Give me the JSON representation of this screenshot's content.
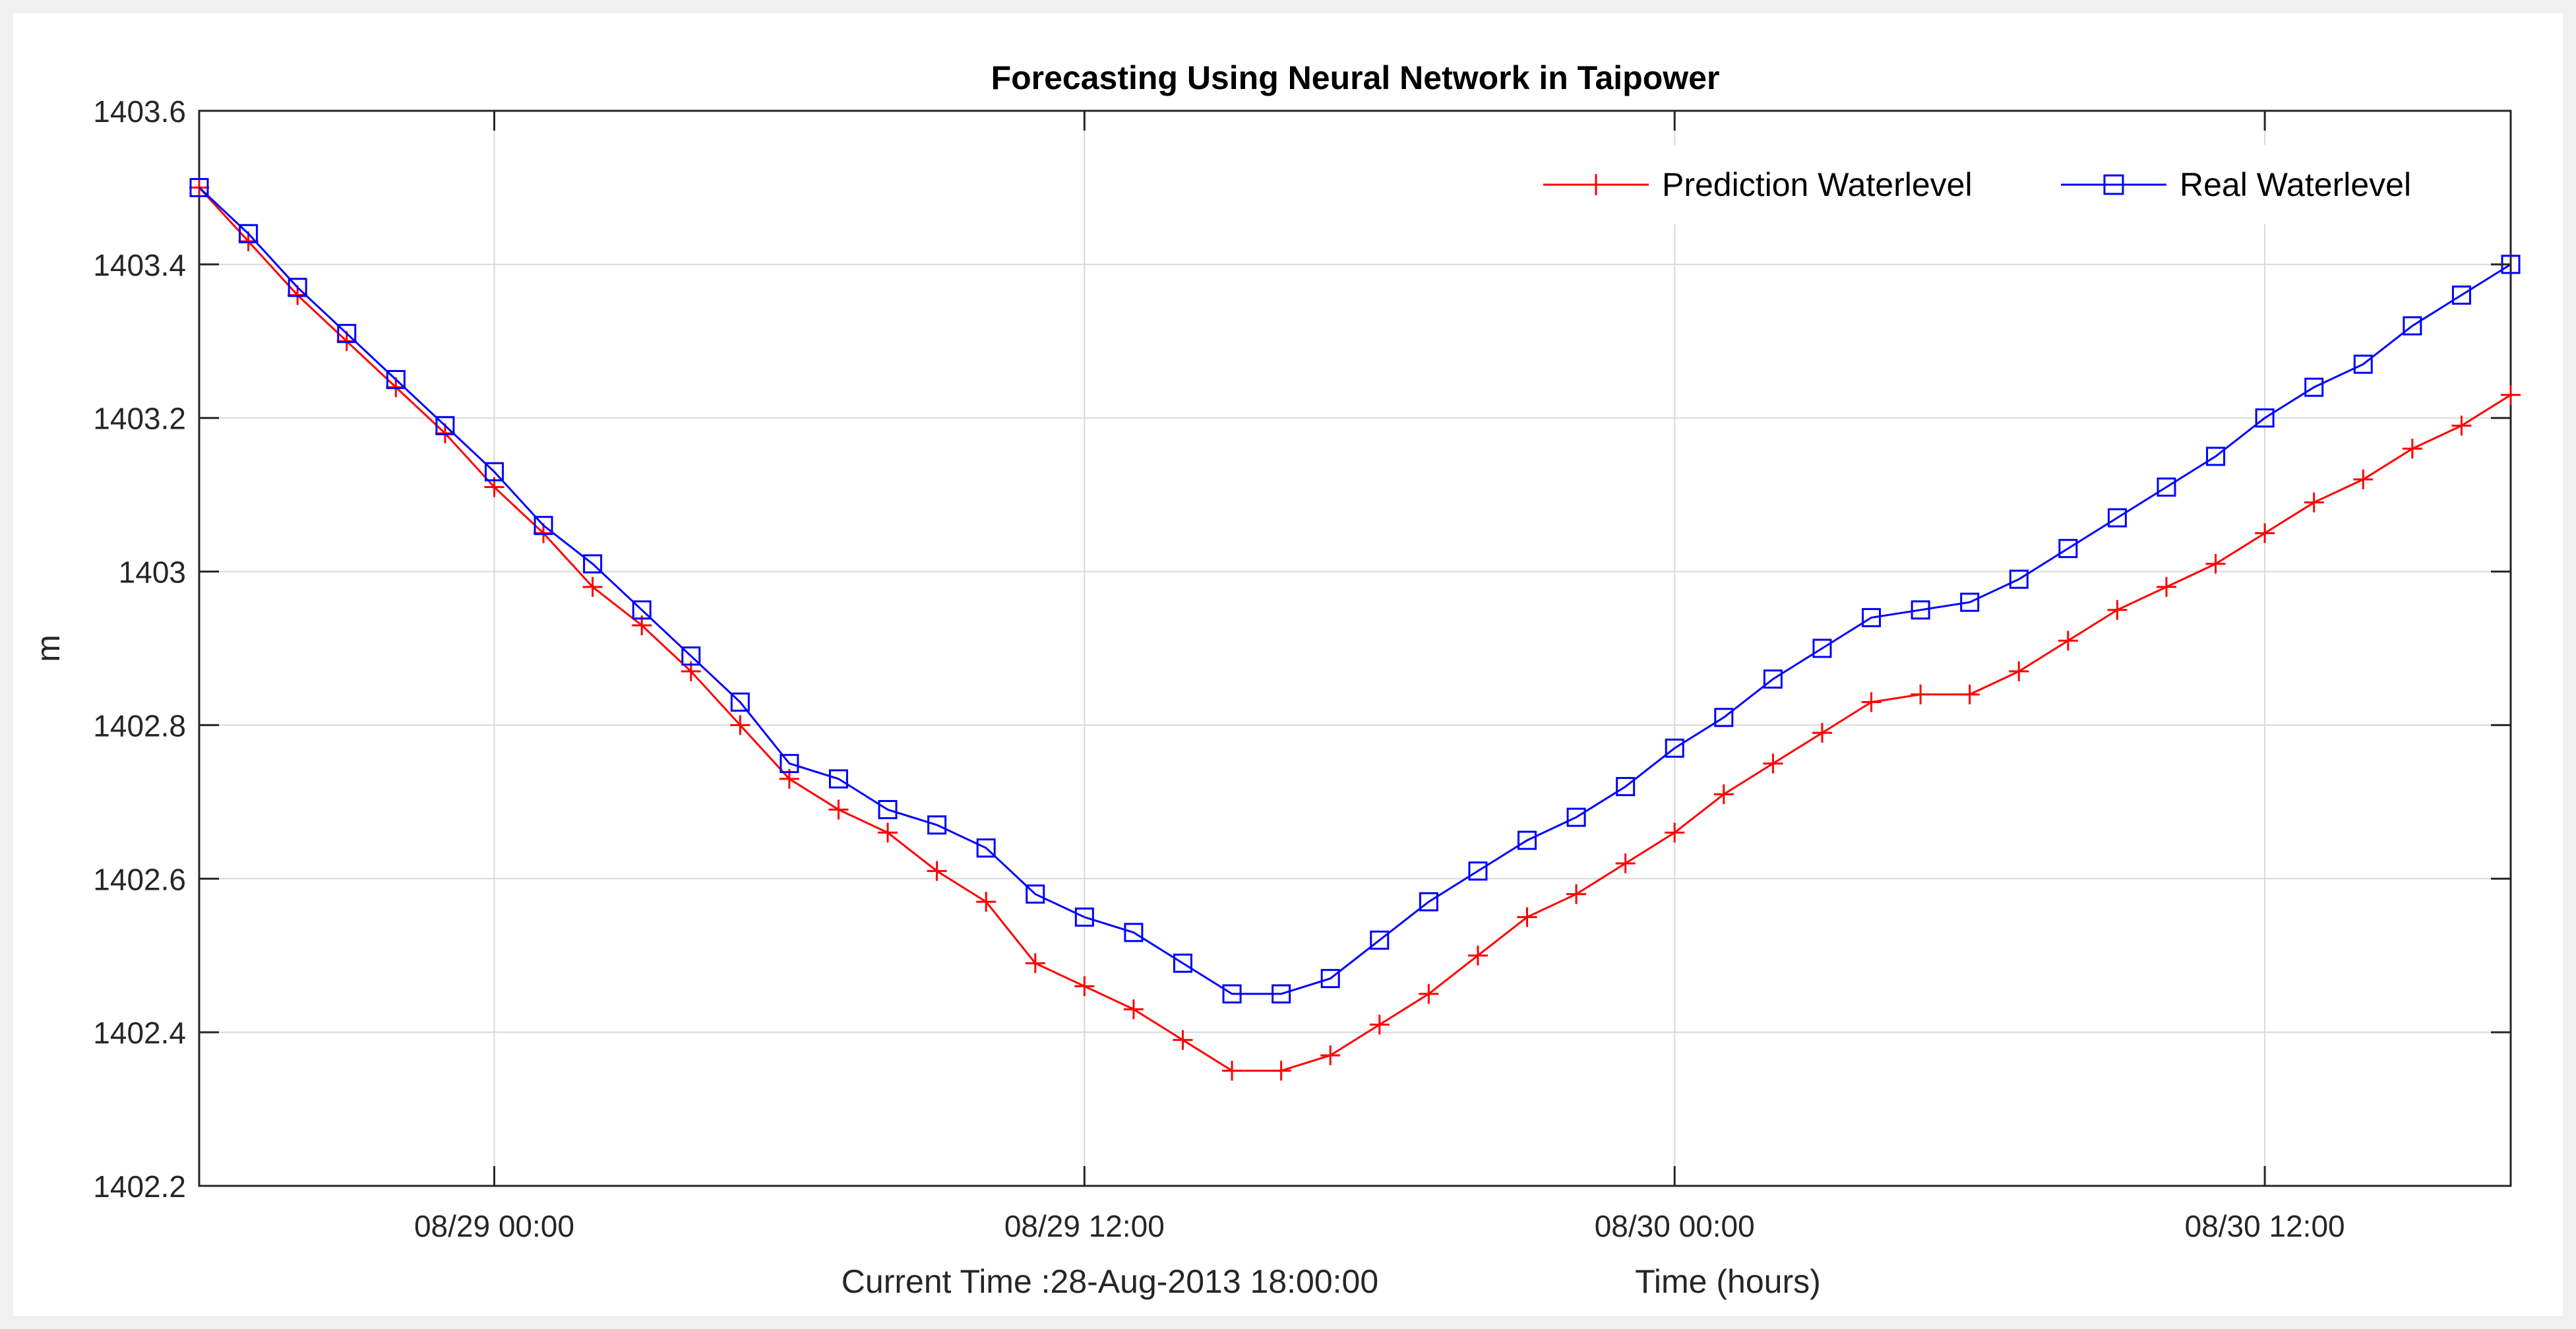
{
  "figure": {
    "title": "Forecasting Using Neural Network in Taipower",
    "xlabel": "Time (hours)",
    "current_time": "Current Time :28-Aug-2013 18:00:00",
    "ylabel": "m"
  },
  "chart_data": {
    "type": "line",
    "title": "Forecasting Using Neural Network in Taipower",
    "xlabel": "Time (hours)",
    "ylabel": "m",
    "x_unit": "hours since 28-Aug-2013 18:00",
    "xlim": [
      0,
      47
    ],
    "ylim": [
      1402.2,
      1403.6
    ],
    "x_ticks": [
      {
        "x": 6,
        "label": "08/29 00:00"
      },
      {
        "x": 18,
        "label": "08/29 12:00"
      },
      {
        "x": 30,
        "label": "08/30 00:00"
      },
      {
        "x": 42,
        "label": "08/30 12:00"
      }
    ],
    "y_ticks": [
      {
        "y": 1402.2,
        "label": "1402.2"
      },
      {
        "y": 1402.4,
        "label": "1402.4"
      },
      {
        "y": 1402.6,
        "label": "1402.6"
      },
      {
        "y": 1402.8,
        "label": "1402.8"
      },
      {
        "y": 1403.0,
        "label": "1403"
      },
      {
        "y": 1403.2,
        "label": "1403.2"
      },
      {
        "y": 1403.4,
        "label": "1403.4"
      },
      {
        "y": 1403.6,
        "label": "1403.6"
      }
    ],
    "grid": true,
    "legend_position": "top-right",
    "x": [
      0,
      1,
      2,
      3,
      4,
      5,
      6,
      7,
      8,
      9,
      10,
      11,
      12,
      13,
      14,
      15,
      16,
      17,
      18,
      19,
      20,
      21,
      22,
      23,
      24,
      25,
      26,
      27,
      28,
      29,
      30,
      31,
      32,
      33,
      34,
      35,
      36,
      37,
      38,
      39,
      40,
      41,
      42,
      43,
      44,
      45,
      46,
      47
    ],
    "series": [
      {
        "name": "Prediction Waterlevel",
        "color": "#ff0000",
        "marker": "plus",
        "values": [
          1403.5,
          1403.43,
          1403.36,
          1403.3,
          1403.24,
          1403.18,
          1403.11,
          1403.05,
          1402.98,
          1402.93,
          1402.87,
          1402.8,
          1402.73,
          1402.69,
          1402.66,
          1402.61,
          1402.57,
          1402.49,
          1402.46,
          1402.43,
          1402.39,
          1402.35,
          1402.35,
          1402.37,
          1402.41,
          1402.45,
          1402.5,
          1402.55,
          1402.58,
          1402.62,
          1402.66,
          1402.71,
          1402.75,
          1402.79,
          1402.83,
          1402.84,
          1402.84,
          1402.87,
          1402.91,
          1402.95,
          1402.98,
          1403.01,
          1403.05,
          1403.09,
          1403.12,
          1403.16,
          1403.19,
          1403.23
        ]
      },
      {
        "name": "Real Waterlevel",
        "color": "#0000ff",
        "marker": "square",
        "values": [
          1403.5,
          1403.44,
          1403.37,
          1403.31,
          1403.25,
          1403.19,
          1403.13,
          1403.06,
          1403.01,
          1402.95,
          1402.89,
          1402.83,
          1402.75,
          1402.73,
          1402.69,
          1402.67,
          1402.64,
          1402.58,
          1402.55,
          1402.53,
          1402.49,
          1402.45,
          1402.45,
          1402.47,
          1402.52,
          1402.57,
          1402.61,
          1402.65,
          1402.68,
          1402.72,
          1402.77,
          1402.81,
          1402.86,
          1402.9,
          1402.94,
          1402.95,
          1402.96,
          1402.99,
          1403.03,
          1403.07,
          1403.11,
          1403.15,
          1403.2,
          1403.24,
          1403.27,
          1403.32,
          1403.36,
          1403.4
        ]
      }
    ]
  }
}
